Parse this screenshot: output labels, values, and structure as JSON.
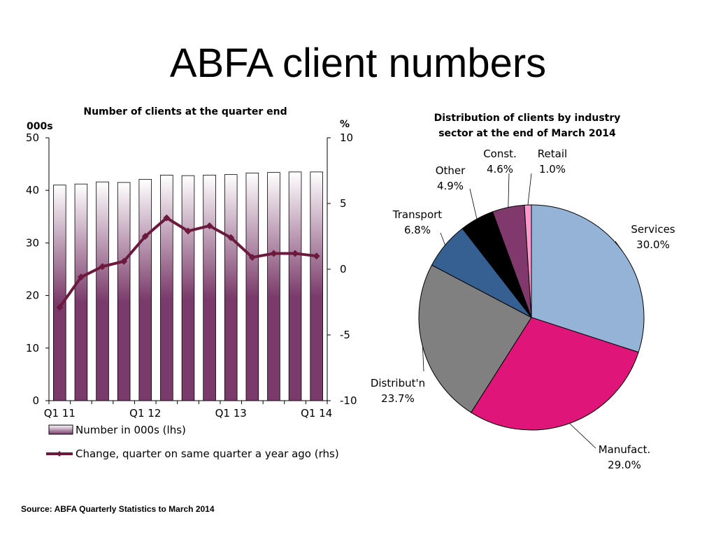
{
  "slide": {
    "title": "ABFA client numbers",
    "source": "Source: ABFA Quarterly Statistics to March 2014"
  },
  "colors": {
    "bar_dark": "#7a3a6a",
    "bar_light": "#ffffff",
    "line": "#6b1a3d",
    "pie": [
      "#95b3d7",
      "#e0157a",
      "#808080",
      "#366092",
      "#000000",
      "#7f3a6b",
      "#ff99cc"
    ]
  },
  "chart_data": [
    {
      "type": "bar",
      "title": "Number of clients at the quarter end",
      "ylabel_left": "000s",
      "ylabel_right": "%",
      "ylim_left": [
        0,
        50
      ],
      "ylim_right": [
        -10,
        10
      ],
      "yticks_left": [
        "0",
        "10",
        "20",
        "30",
        "40",
        "50"
      ],
      "yticks_right": [
        "-10",
        "-5",
        "0",
        "5",
        "10"
      ],
      "x_tick_labels": [
        {
          "index": 0,
          "label": "Q1 11"
        },
        {
          "index": 4,
          "label": "Q1 12"
        },
        {
          "index": 8,
          "label": "Q1 13"
        },
        {
          "index": 12,
          "label": "Q1 14"
        }
      ],
      "legend": {
        "placement": "bottom",
        "bar_label": "Number in 000s (lhs)",
        "line_label": "Change, quarter on same quarter a year ago (rhs)"
      },
      "series": [
        {
          "kind": "bar",
          "axis": "left",
          "values": [
            41.0,
            41.2,
            41.6,
            41.5,
            42.1,
            42.9,
            42.8,
            42.9,
            43.0,
            43.3,
            43.4,
            43.5,
            43.5
          ]
        },
        {
          "kind": "line",
          "axis": "right",
          "values": [
            -2.9,
            -0.6,
            0.2,
            0.6,
            2.5,
            3.9,
            2.9,
            3.3,
            2.4,
            0.9,
            1.2,
            1.2,
            1.0
          ]
        }
      ]
    },
    {
      "type": "pie",
      "title_lines": [
        "Distribution  of clients by industry",
        "sector at the end of March 2014"
      ],
      "slices": [
        {
          "name": "Services",
          "value": 30.0,
          "pct": "30.0%"
        },
        {
          "name": "Manufact.",
          "value": 29.0,
          "pct": "29.0%"
        },
        {
          "name": "Distribut'n",
          "value": 23.7,
          "pct": "23.7%"
        },
        {
          "name": "Transport",
          "value": 6.8,
          "pct": "6.8%"
        },
        {
          "name": "Other",
          "value": 4.9,
          "pct": "4.9%"
        },
        {
          "name": "Const.",
          "value": 4.6,
          "pct": "4.6%"
        },
        {
          "name": "Retail",
          "value": 1.0,
          "pct": "1.0%"
        }
      ]
    }
  ]
}
